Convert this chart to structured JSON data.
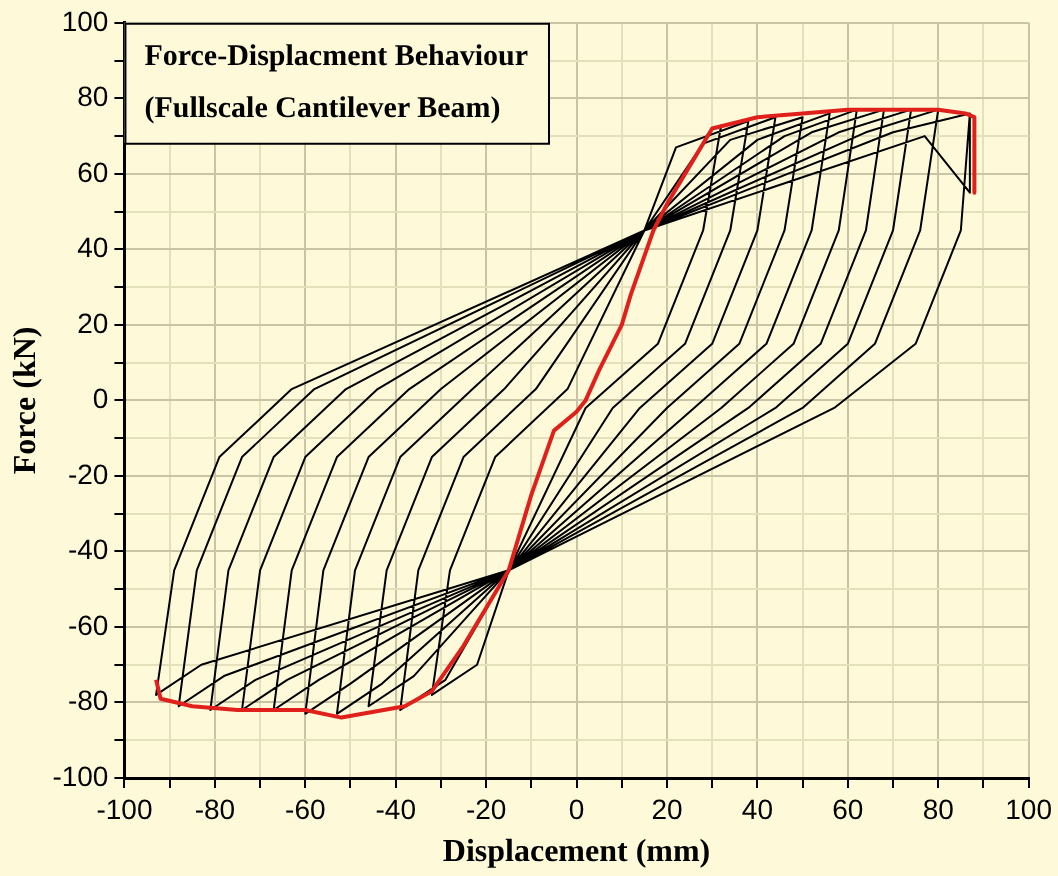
{
  "chart_data": {
    "type": "line",
    "title": "Force-Displacment Behaviour",
    "subtitle": "(Fullscale Cantilever Beam)",
    "xlabel": "Displacement (mm)",
    "ylabel": "Force (kN)",
    "xlim": [
      -100,
      100
    ],
    "ylim": [
      -100,
      100
    ],
    "xticks": [
      -100,
      {
        "value": -90,
        "label": null
      },
      -80,
      {
        "value": -70,
        "label": null
      },
      -60,
      {
        "value": -50,
        "label": null
      },
      -40,
      {
        "value": -30,
        "label": null
      },
      -20,
      {
        "value": -10,
        "label": null
      },
      0,
      {
        "value": 10,
        "label": null
      },
      20,
      {
        "value": 30,
        "label": null
      },
      40,
      {
        "value": 50,
        "label": null
      },
      60,
      {
        "value": 70,
        "label": null
      },
      80,
      {
        "value": 90,
        "label": null
      },
      100
    ],
    "yticks": [
      -100,
      {
        "value": -90,
        "label": null
      },
      -80,
      {
        "value": -70,
        "label": null
      },
      -60,
      {
        "value": -50,
        "label": null
      },
      -40,
      {
        "value": -30,
        "label": null
      },
      -20,
      {
        "value": -10,
        "label": null
      },
      0,
      {
        "value": 10,
        "label": null
      },
      20,
      {
        "value": 30,
        "label": null
      },
      40,
      {
        "value": 50,
        "label": null
      },
      60,
      {
        "value": 70,
        "label": null
      },
      80,
      {
        "value": 90,
        "label": null
      },
      100
    ],
    "grid": true,
    "legend": false,
    "marker": "none",
    "line_style": "solid",
    "series": [
      {
        "color": "#000000",
        "x": [
          32,
          28,
          18,
          2,
          -15,
          -22,
          -32,
          -28,
          -18,
          -2,
          15,
          22,
          38,
          34,
          24,
          8,
          -15,
          -29,
          -39,
          -35,
          -25,
          -9,
          15,
          28,
          44,
          40,
          30,
          14,
          -15,
          -36,
          -46,
          -42,
          -32,
          -16,
          15,
          34,
          50,
          46,
          36,
          20,
          -15,
          -43,
          -53,
          -49,
          -39,
          -23,
          15,
          40,
          56,
          52,
          42,
          26,
          -15,
          -50,
          -60,
          -56,
          -46,
          -30,
          15,
          46,
          62,
          58,
          48,
          32,
          -15,
          -57,
          -67,
          -63,
          -53,
          -37,
          15,
          52,
          68,
          64,
          54,
          38,
          -15,
          -64,
          -74,
          -70,
          -60,
          -44,
          15,
          58,
          74,
          70,
          60,
          44,
          -15,
          -71,
          -81,
          -77,
          -67,
          -51,
          15,
          64,
          80,
          76,
          66,
          50,
          -15,
          -78,
          -88,
          -84,
          -74,
          -58,
          15,
          70,
          87,
          85,
          75,
          57,
          -15,
          -83,
          -93,
          -89,
          -79,
          -63,
          15,
          77,
          87,
          87
        ],
        "values": [
          73,
          45,
          15,
          -2,
          -45,
          -70,
          -78,
          -45,
          -15,
          3,
          45,
          67,
          74,
          45,
          15,
          -2,
          -45,
          -74,
          -82,
          -45,
          -15,
          3,
          45,
          68,
          75,
          45,
          15,
          -2,
          -45,
          -73,
          -81,
          -45,
          -15,
          3,
          45,
          69,
          75,
          45,
          15,
          -2,
          -45,
          -75,
          -83,
          -45,
          -15,
          3,
          45,
          69,
          76,
          45,
          15,
          -2,
          -45,
          -75,
          -83,
          -45,
          -15,
          3,
          45,
          70,
          77,
          45,
          15,
          -2,
          -45,
          -74,
          -82,
          -45,
          -15,
          3,
          45,
          71,
          77,
          45,
          15,
          -2,
          -45,
          -74,
          -82,
          -45,
          -15,
          3,
          45,
          71,
          77,
          45,
          15,
          -2,
          -45,
          -74,
          -82,
          -45,
          -15,
          3,
          45,
          71,
          77,
          45,
          15,
          -2,
          -45,
          -73,
          -81,
          -45,
          -15,
          3,
          45,
          71,
          76,
          45,
          15,
          -2,
          -45,
          -70,
          -78,
          -45,
          -15,
          3,
          45,
          70,
          55,
          76
        ]
      },
      {
        "color": "#e0201b",
        "x": [
          -93,
          -92,
          -85,
          -75,
          -60,
          -52,
          -38,
          -32,
          -25,
          -15,
          -10,
          -5,
          0,
          2,
          5,
          10,
          12,
          17,
          20,
          23,
          30,
          40,
          50,
          60,
          70,
          80,
          86,
          88,
          88
        ],
        "values": [
          -74,
          -79,
          -81,
          -82,
          -82,
          -84,
          -81,
          -77,
          -65,
          -45,
          -25,
          -8,
          -3,
          0,
          8,
          20,
          28,
          45,
          52,
          58,
          72,
          75,
          76,
          77,
          77,
          77,
          76,
          75,
          55
        ]
      }
    ]
  }
}
